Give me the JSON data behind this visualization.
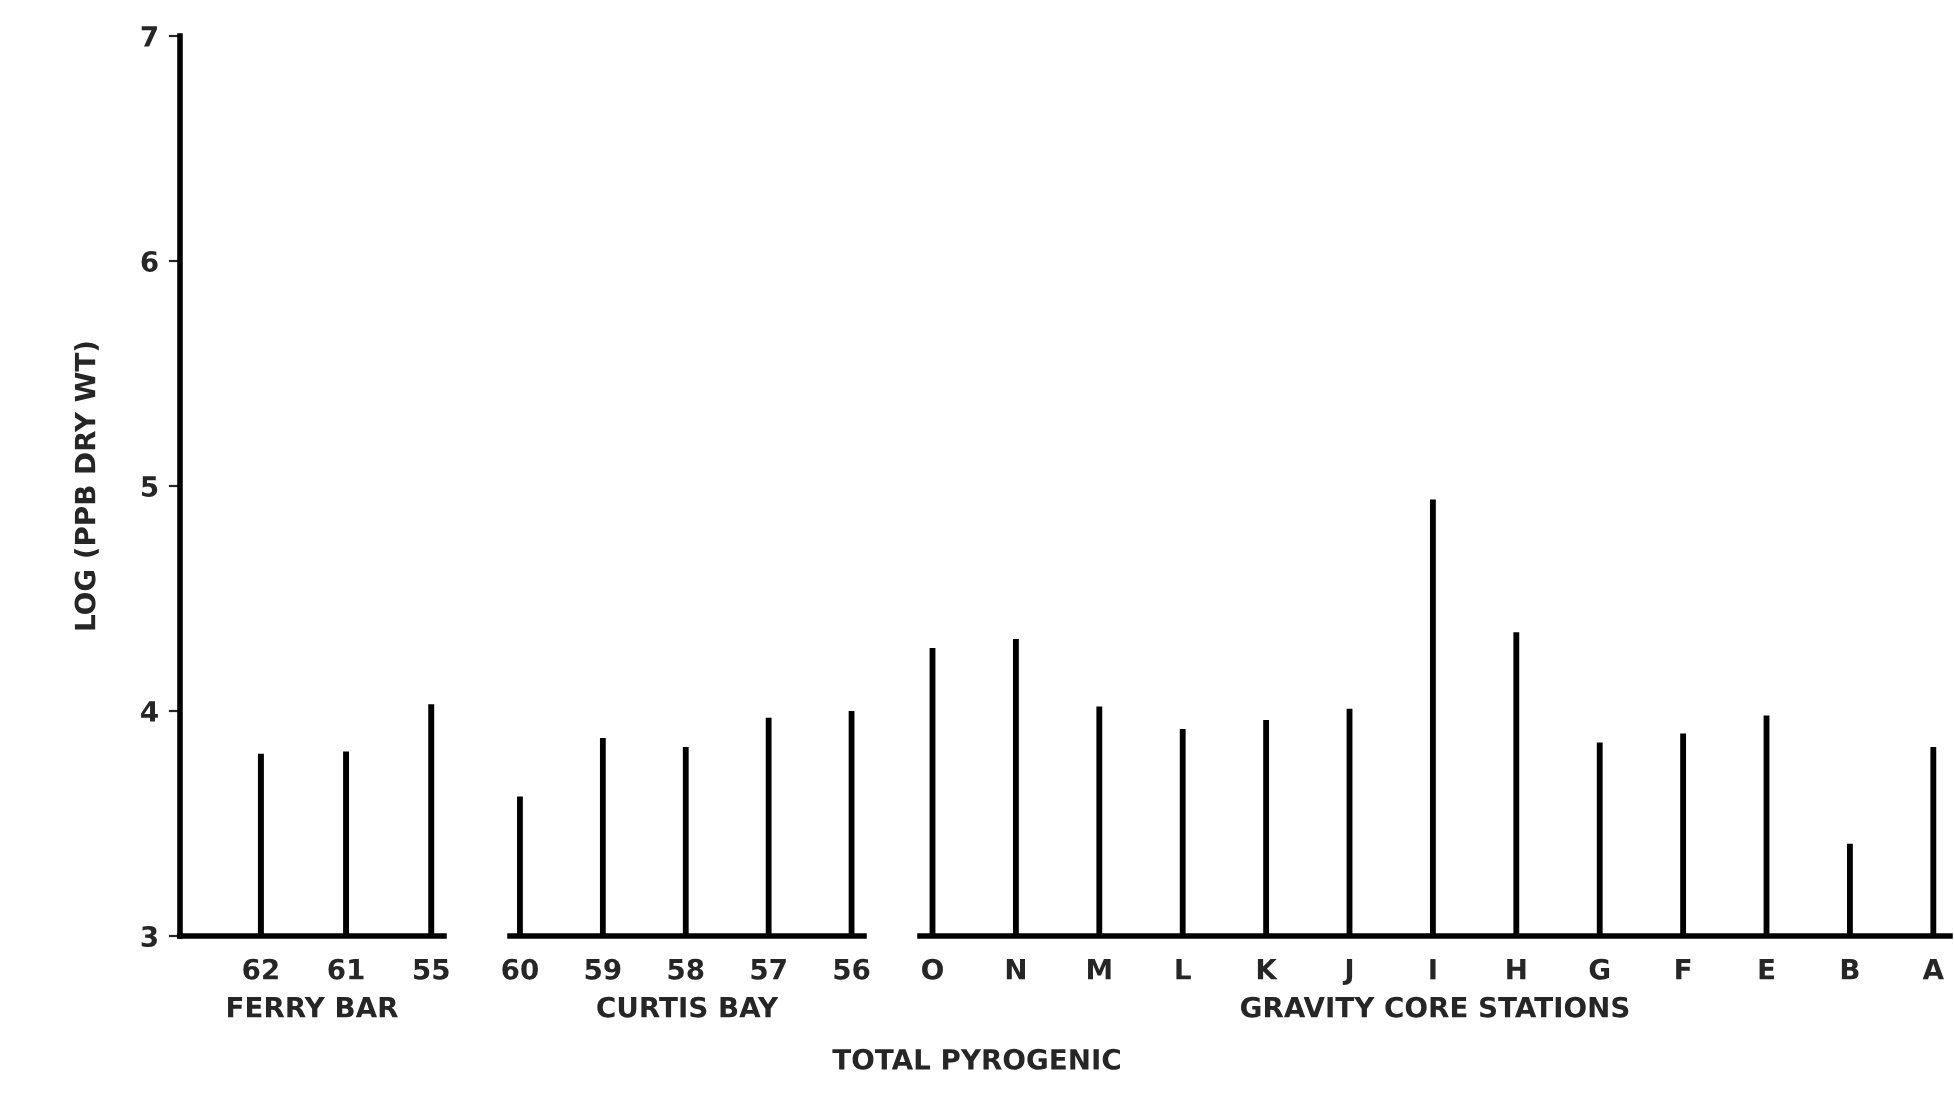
{
  "chart_data": [
    {
      "type": "bar",
      "xlabel": "FERRY BAR",
      "ylabel": "LOG (PPB DRY WT)",
      "categories": [
        "62",
        "61",
        "55"
      ],
      "values": [
        3.81,
        3.82,
        4.03
      ],
      "color": "#000000",
      "ylim": [
        3,
        7
      ],
      "yticks": [
        3,
        4,
        5,
        6,
        7
      ],
      "grid": false
    },
    {
      "type": "bar",
      "xlabel": "CURTIS BAY",
      "categories": [
        "60",
        "59",
        "58",
        "57",
        "56"
      ],
      "values": [
        3.62,
        3.88,
        3.84,
        3.97,
        4.0
      ],
      "color": "#000000",
      "ylim": [
        3,
        7
      ],
      "yticks": [
        3,
        4,
        5,
        6,
        7
      ],
      "tick_labels": "x",
      "grid": false,
      "annotations": [
        "TOTAL PYROGENIC"
      ]
    },
    {
      "type": "bar",
      "xlabel": "GRAVITY CORE STATIONS",
      "categories": [
        "O",
        "N",
        "M",
        "L",
        "K",
        "J",
        "I",
        "H",
        "G",
        "F",
        "E",
        "B",
        "A"
      ],
      "values": [
        4.28,
        4.32,
        4.02,
        3.92,
        3.96,
        4.01,
        4.94,
        4.35,
        3.86,
        3.9,
        3.98,
        3.41,
        3.84
      ],
      "color": "#000000",
      "ylim": [
        3,
        7
      ],
      "yticks": [
        3,
        4,
        5,
        6,
        7
      ],
      "tick_labels": "x",
      "grid": false
    }
  ]
}
